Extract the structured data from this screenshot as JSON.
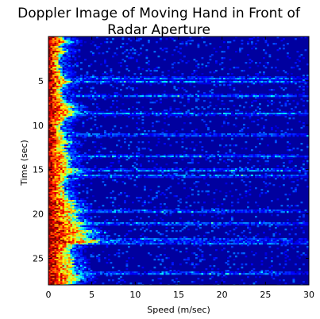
{
  "chart_data": {
    "type": "heatmap",
    "title_lines": [
      "Doppler Image of Moving Hand in Front of",
      "Radar Aperture"
    ],
    "xlabel": "Speed (m/sec)",
    "ylabel": "Time (sec)",
    "xlim": [
      0,
      30
    ],
    "ylim": [
      0,
      28
    ],
    "y_inverted": true,
    "x_ticks": [
      0,
      5,
      10,
      15,
      20,
      25,
      30
    ],
    "y_ticks": [
      5,
      10,
      15,
      20,
      25
    ],
    "x_tick_labels": [
      "0",
      "5",
      "10",
      "15",
      "20",
      "25",
      "30"
    ],
    "y_tick_labels": [
      "5",
      "10",
      "15",
      "20",
      "25"
    ],
    "colormap": "jet",
    "background_color": "#00009f",
    "grid": false,
    "spread_profile": [
      [
        0.0,
        1.6
      ],
      [
        0.5,
        2.6
      ],
      [
        1.0,
        1.4
      ],
      [
        1.6,
        2.2
      ],
      [
        2.2,
        1.2
      ],
      [
        3.0,
        1.3
      ],
      [
        3.6,
        1.5
      ],
      [
        4.3,
        1.8
      ],
      [
        5.0,
        2.9
      ],
      [
        5.6,
        2.0
      ],
      [
        6.2,
        1.6
      ],
      [
        7.0,
        2.0
      ],
      [
        7.6,
        2.8
      ],
      [
        8.3,
        3.6
      ],
      [
        9.0,
        2.6
      ],
      [
        9.6,
        1.8
      ],
      [
        10.2,
        1.6
      ],
      [
        11.0,
        2.0
      ],
      [
        11.8,
        2.6
      ],
      [
        12.5,
        2.0
      ],
      [
        13.2,
        2.2
      ],
      [
        14.0,
        2.8
      ],
      [
        15.0,
        3.4
      ],
      [
        15.8,
        2.4
      ],
      [
        16.5,
        1.8
      ],
      [
        17.2,
        2.2
      ],
      [
        18.0,
        2.6
      ],
      [
        18.8,
        3.2
      ],
      [
        19.6,
        4.0
      ],
      [
        20.2,
        3.6
      ],
      [
        20.8,
        4.6
      ],
      [
        21.4,
        4.0
      ],
      [
        22.0,
        5.4
      ],
      [
        22.6,
        4.6
      ],
      [
        23.0,
        8.4
      ],
      [
        23.4,
        3.6
      ],
      [
        24.0,
        2.8
      ],
      [
        24.8,
        3.0
      ],
      [
        25.6,
        3.2
      ],
      [
        26.4,
        3.0
      ],
      [
        27.2,
        4.8
      ],
      [
        28.0,
        2.4
      ]
    ],
    "streak_times": [
      4.6,
      5.0,
      6.6,
      8.6,
      11.0,
      13.4,
      15.0,
      15.6,
      19.6,
      21.0,
      22.8,
      23.2,
      26.6
    ]
  }
}
